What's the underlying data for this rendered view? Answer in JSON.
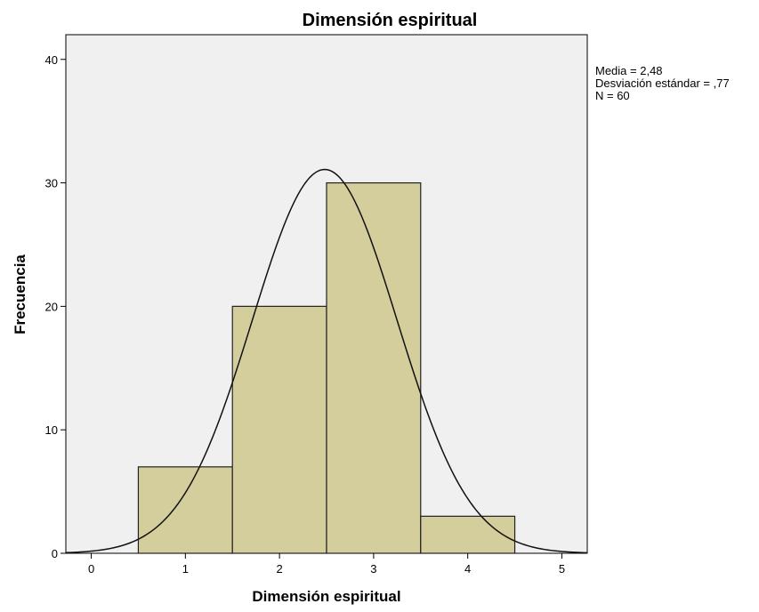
{
  "chart_data": {
    "type": "bar",
    "title": "Dimensión espiritual",
    "xlabel": "Dimensión espiritual",
    "ylabel": "Frecuencia",
    "bins": [
      {
        "x0": 0.5,
        "x1": 1.5,
        "value": 7
      },
      {
        "x0": 1.5,
        "x1": 2.5,
        "value": 20
      },
      {
        "x0": 2.5,
        "x1": 3.5,
        "value": 30
      },
      {
        "x0": 3.5,
        "x1": 4.5,
        "value": 3
      }
    ],
    "xlim": [
      -0.27,
      5.27
    ],
    "ylim": [
      0,
      42
    ],
    "x_ticks": [
      0,
      1,
      2,
      3,
      4,
      5
    ],
    "y_ticks": [
      0,
      10,
      20,
      30,
      40
    ],
    "normal_curve": {
      "mean": 2.48,
      "sd": 0.77,
      "n": 60,
      "bin_width": 1
    },
    "stats_lines": [
      "Media = 2,48",
      "Desviación estándar = ,77",
      "N = 60"
    ],
    "grid": false,
    "legend": "none",
    "colors": {
      "plot_background": "#f0f0f0",
      "bar_fill": "#d3ce9b",
      "bar_stroke": "#222222",
      "curve": "#111111"
    }
  }
}
